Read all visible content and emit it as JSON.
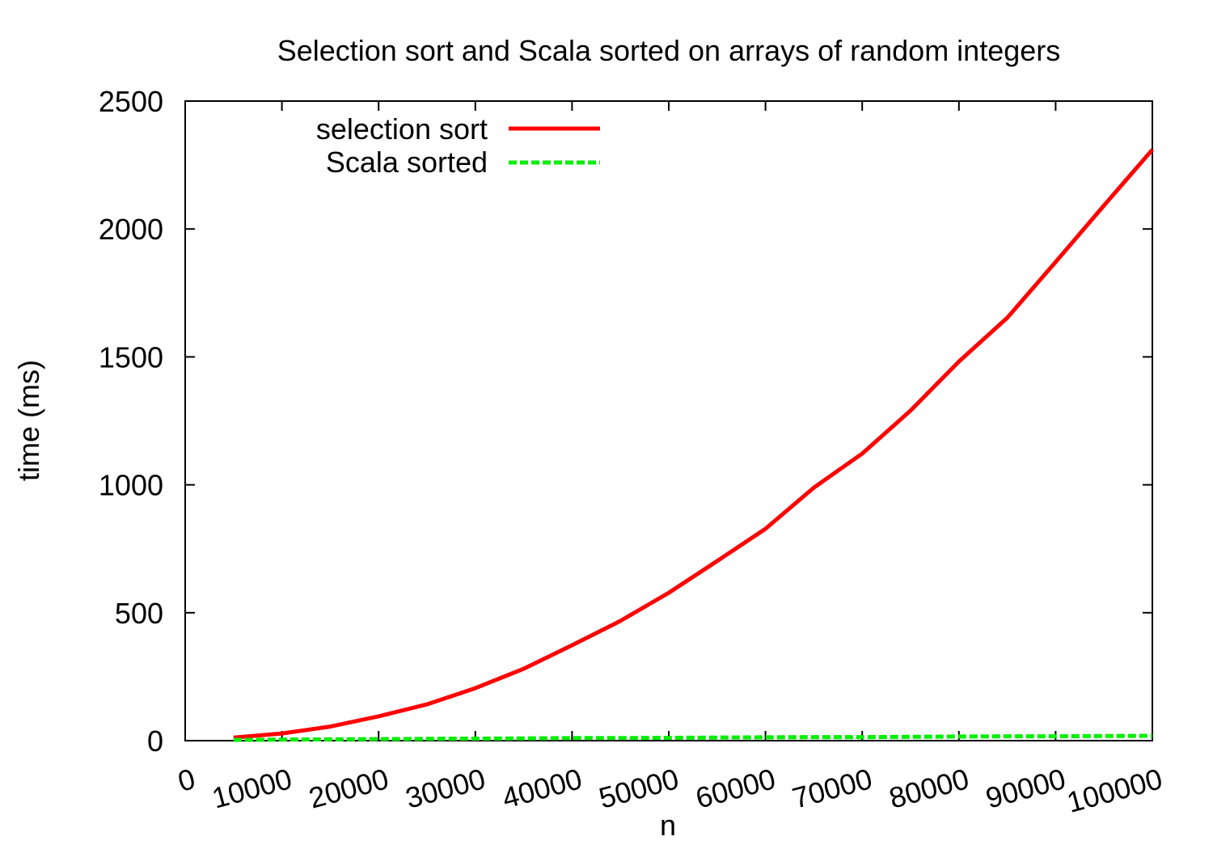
{
  "chart_data": {
    "type": "line",
    "title": "Selection sort and Scala sorted on arrays of random integers",
    "xlabel": "n",
    "ylabel": "time (ms)",
    "xlim": [
      0,
      100000
    ],
    "ylim": [
      0,
      2500
    ],
    "grid": false,
    "legend_position": "top-left",
    "x_ticks": [
      "0",
      "10000",
      "20000",
      "30000",
      "40000",
      "50000",
      "60000",
      "70000",
      "80000",
      "90000",
      "100000"
    ],
    "y_ticks": [
      "0",
      "500",
      "1000",
      "1500",
      "2000",
      "2500"
    ],
    "x": [
      5000,
      10000,
      15000,
      20000,
      25000,
      30000,
      35000,
      40000,
      45000,
      50000,
      55000,
      60000,
      65000,
      70000,
      75000,
      80000,
      85000,
      90000,
      95000,
      100000
    ],
    "series": [
      {
        "name": "selection sort",
        "color": "#ff0000",
        "style": "solid",
        "values": [
          12,
          28,
          55,
          95,
          142,
          205,
          281,
          373,
          468,
          578,
          702,
          828,
          989,
          1122,
          1290,
          1482,
          1653,
          1871,
          2092,
          2310
        ]
      },
      {
        "name": "Scala sorted",
        "color": "#00ee00",
        "style": "dashed",
        "values": [
          3,
          4,
          5,
          6,
          7,
          8,
          9,
          10,
          10,
          11,
          12,
          13,
          14,
          14,
          15,
          16,
          17,
          17,
          18,
          19
        ]
      }
    ]
  }
}
